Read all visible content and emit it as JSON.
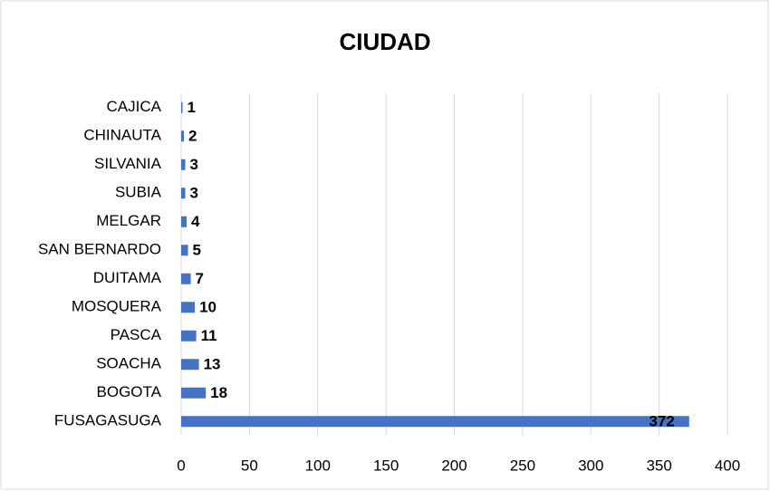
{
  "chart_data": {
    "type": "barh",
    "title": "CIUDAD",
    "categories": [
      "CAJICA",
      "CHINAUTA",
      "SILVANIA",
      "SUBIA",
      "MELGAR",
      "SAN BERNARDO",
      "DUITAMA",
      "MOSQUERA",
      "PASCA",
      "SOACHA",
      "BOGOTA",
      "FUSAGASUGA"
    ],
    "values": [
      1,
      2,
      3,
      3,
      4,
      5,
      7,
      10,
      11,
      13,
      18,
      372
    ],
    "color": "#4472c4",
    "xlim": [
      0,
      400
    ],
    "xticks": [
      0,
      50,
      100,
      150,
      200,
      250,
      300,
      350,
      400
    ],
    "grid": true
  }
}
